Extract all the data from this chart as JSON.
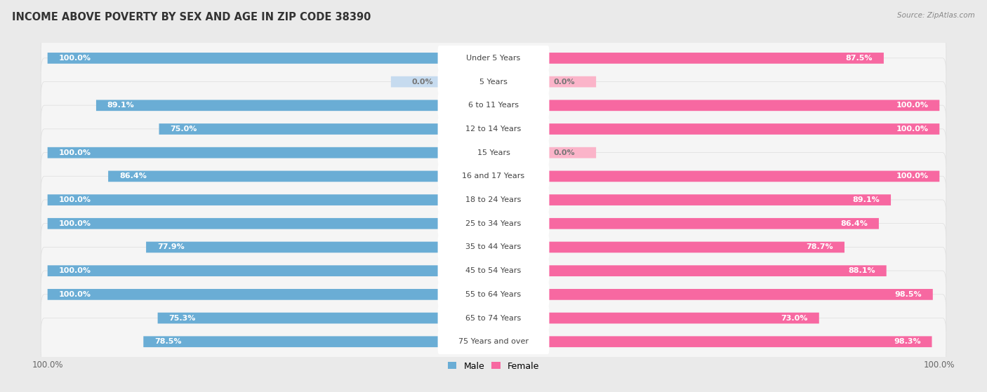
{
  "title": "INCOME ABOVE POVERTY BY SEX AND AGE IN ZIP CODE 38390",
  "source": "Source: ZipAtlas.com",
  "categories": [
    "Under 5 Years",
    "5 Years",
    "6 to 11 Years",
    "12 to 14 Years",
    "15 Years",
    "16 and 17 Years",
    "18 to 24 Years",
    "25 to 34 Years",
    "35 to 44 Years",
    "45 to 54 Years",
    "55 to 64 Years",
    "65 to 74 Years",
    "75 Years and over"
  ],
  "male": [
    100.0,
    0.0,
    89.1,
    75.0,
    100.0,
    86.4,
    100.0,
    100.0,
    77.9,
    100.0,
    100.0,
    75.3,
    78.5
  ],
  "female": [
    87.5,
    0.0,
    100.0,
    100.0,
    0.0,
    100.0,
    89.1,
    86.4,
    78.7,
    88.1,
    98.5,
    73.0,
    98.3
  ],
  "male_color": "#6aadd5",
  "female_color": "#f768a1",
  "male_color_light": "#c6dbef",
  "female_color_light": "#fbb4c9",
  "bg_color": "#eaeaea",
  "row_bg_color": "#f5f5f5",
  "label_bg_color": "#ffffff",
  "title_fontsize": 10.5,
  "label_fontsize": 8.0,
  "val_fontsize": 8.0
}
